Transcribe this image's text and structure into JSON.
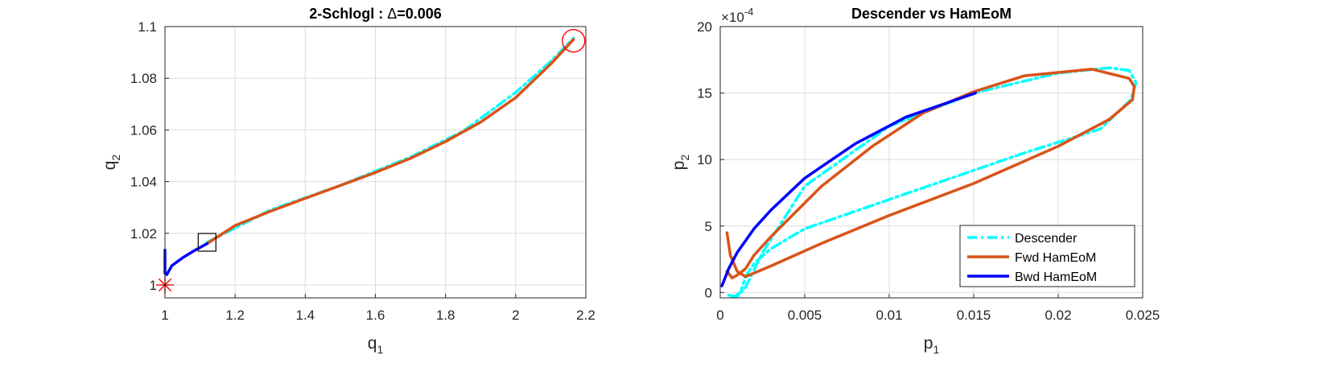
{
  "colors": {
    "descender": "#00ffff",
    "fwd": "#d95319",
    "bwd": "#0000ff",
    "marker": "#ff0000",
    "box": "#000000"
  },
  "chart_data": [
    {
      "type": "line",
      "title_prefix": "2-Schlogl : ",
      "title_symbol": "Δ",
      "title_suffix": "=0.006",
      "xlabel_base": "q",
      "xlabel_sub": "1",
      "ylabel_base": "q",
      "ylabel_sub": "2",
      "xlim": [
        1,
        2.2
      ],
      "ylim": [
        0.995,
        1.1
      ],
      "xticks": [
        1,
        1.2,
        1.4,
        1.6,
        1.8,
        2,
        2.2
      ],
      "xtick_labels": [
        "1",
        "1.2",
        "1.4",
        "1.6",
        "1.8",
        "2",
        "2.2"
      ],
      "yticks": [
        1,
        1.02,
        1.04,
        1.06,
        1.08,
        1.1
      ],
      "ytick_labels": [
        "1",
        "1.02",
        "1.04",
        "1.06",
        "1.08",
        "1.1"
      ],
      "grid": true,
      "series": [
        {
          "key": "descender",
          "style": "dashdot",
          "x": [
            1.12,
            1.3,
            1.5,
            1.7,
            1.85,
            2.0,
            2.1,
            2.165
          ],
          "y": [
            1.0165,
            1.029,
            1.0385,
            1.0495,
            1.0595,
            1.0745,
            1.0865,
            1.0955
          ]
        },
        {
          "key": "fwd",
          "style": "solid",
          "x": [
            1.12,
            1.2,
            1.3,
            1.4,
            1.5,
            1.6,
            1.7,
            1.8,
            1.9,
            2.0,
            2.1,
            2.165
          ],
          "y": [
            1.016,
            1.023,
            1.0285,
            1.0335,
            1.0385,
            1.0435,
            1.049,
            1.0555,
            1.063,
            1.0725,
            1.0855,
            1.095
          ]
        },
        {
          "key": "bwd",
          "style": "solid",
          "x": [
            1.0,
            1.0,
            1.005,
            1.02,
            1.05,
            1.08,
            1.12
          ],
          "y": [
            1.0135,
            1.0045,
            1.004,
            1.0075,
            1.0105,
            1.013,
            1.016
          ]
        }
      ],
      "markers": [
        {
          "type": "star",
          "x": 1.0,
          "y": 1.0
        },
        {
          "type": "circle",
          "x": 2.165,
          "y": 1.0945
        },
        {
          "type": "square",
          "x": 1.12,
          "y": 1.0165
        }
      ]
    },
    {
      "type": "line",
      "title": "Descender vs HamEoM",
      "xlabel_base": "p",
      "xlabel_sub": "1",
      "ylabel_base": "p",
      "ylabel_sub": "2",
      "y_multiplier": "×10",
      "y_exponent": "-4",
      "xlim": [
        0,
        0.025
      ],
      "ylim": [
        -0.4,
        20
      ],
      "xticks": [
        0,
        0.005,
        0.01,
        0.015,
        0.02,
        0.025
      ],
      "xtick_labels": [
        "0",
        "0.005",
        "0.01",
        "0.015",
        "0.02",
        "0.025"
      ],
      "yticks": [
        0,
        5,
        10,
        15,
        20
      ],
      "ytick_labels": [
        "0",
        "5",
        "10",
        "15",
        "20"
      ],
      "grid": true,
      "legend": {
        "position": "bottom-right",
        "entries": [
          {
            "key": "descender",
            "label": "Descender",
            "style": "dashdot"
          },
          {
            "key": "fwd",
            "label": "Fwd HamEoM",
            "style": "solid"
          },
          {
            "key": "bwd",
            "label": "Bwd HamEoM",
            "style": "solid"
          }
        ]
      },
      "series": [
        {
          "key": "descender",
          "style": "dashdot",
          "x": [
            0.0005,
            0.001,
            0.0015,
            0.0025,
            0.005,
            0.01,
            0.015,
            0.02,
            0.023,
            0.0242,
            0.0246,
            0.0243,
            0.0225,
            0.018,
            0.01,
            0.005,
            0.003,
            0.002,
            0.0015,
            0.0012,
            0.0008,
            0.0004
          ],
          "y": [
            -0.2,
            -0.3,
            0.4,
            3.0,
            8.0,
            12.5,
            15.0,
            16.5,
            16.9,
            16.7,
            15.8,
            14.5,
            12.3,
            10.5,
            7.0,
            4.8,
            3.3,
            2.2,
            1.2,
            0.0,
            -0.3,
            -0.2
          ]
        },
        {
          "key": "fwd",
          "style": "solid",
          "x": [
            0.0004,
            0.0006,
            0.001,
            0.0015,
            0.003,
            0.006,
            0.01,
            0.015,
            0.02,
            0.023,
            0.0244,
            0.0245,
            0.0242,
            0.022,
            0.018,
            0.015,
            0.012,
            0.009,
            0.006,
            0.003,
            0.002,
            0.0015,
            0.001,
            0.0007,
            0.0004
          ],
          "y": [
            4.5,
            2.8,
            1.6,
            1.2,
            2.0,
            3.7,
            5.8,
            8.2,
            11.0,
            13.0,
            14.5,
            15.5,
            16.1,
            16.8,
            16.3,
            15.1,
            13.5,
            11.0,
            8.0,
            4.2,
            2.8,
            1.8,
            1.3,
            1.1,
            1.6
          ]
        },
        {
          "key": "bwd",
          "style": "solid",
          "x": [
            0.0001,
            0.0005,
            0.001,
            0.002,
            0.003,
            0.005,
            0.008,
            0.011,
            0.0151
          ],
          "y": [
            0.5,
            1.8,
            3.0,
            4.8,
            6.2,
            8.6,
            11.2,
            13.2,
            15.0
          ]
        }
      ]
    }
  ]
}
